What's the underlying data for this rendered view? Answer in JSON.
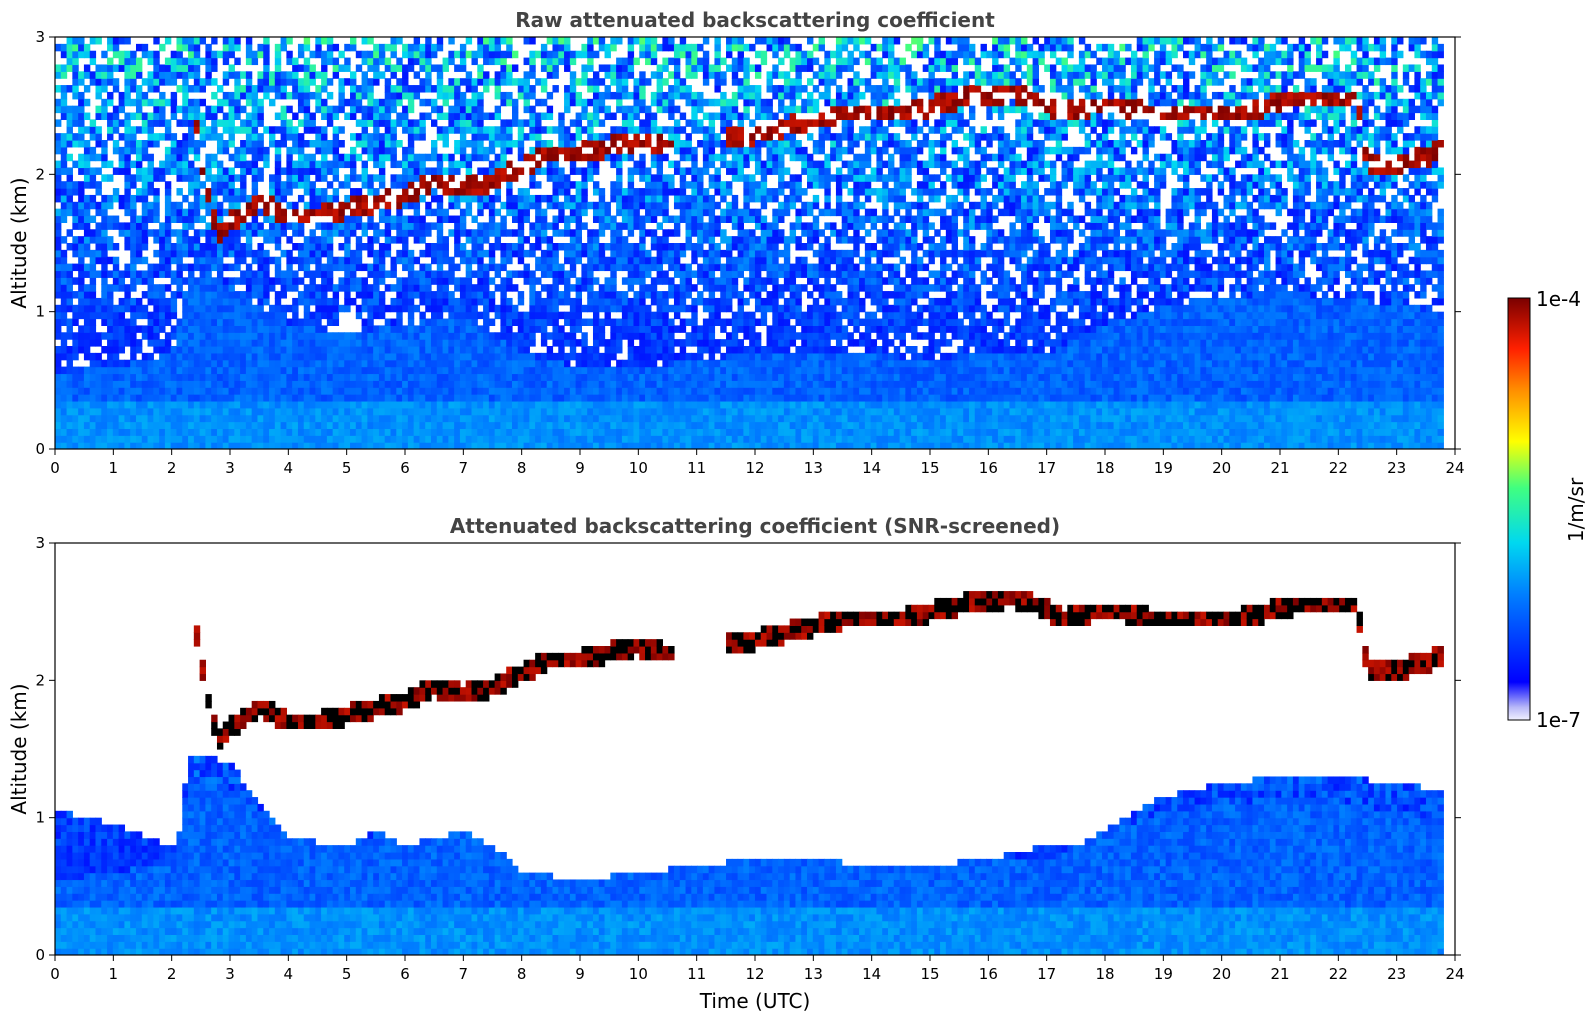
{
  "chart_data": [
    {
      "type": "heatmap",
      "title": "Raw attenuated backscattering coefficient",
      "ylabel": "Altitude (km)",
      "xlabel": "",
      "xlim": [
        0,
        24
      ],
      "ylim": [
        0,
        3
      ],
      "x_ticks": [
        0,
        1,
        2,
        3,
        4,
        5,
        6,
        7,
        8,
        9,
        10,
        11,
        12,
        13,
        14,
        15,
        16,
        17,
        18,
        19,
        20,
        21,
        22,
        23,
        24
      ],
      "y_ticks": [
        0,
        1,
        2,
        3
      ],
      "data_end_hour": 23.8,
      "screened": false,
      "layer_altitude_km": {
        "x": [
          2.4,
          2.6,
          2.8,
          3.0,
          3.5,
          4.0,
          4.5,
          5.0,
          5.5,
          6.0,
          6.5,
          7.0,
          7.5,
          8.0,
          8.5,
          9.0,
          9.5,
          10.0,
          10.5,
          11.5,
          12.0,
          12.5,
          13.0,
          13.5,
          14.0,
          14.5,
          15.0,
          15.5,
          16.4,
          16.8,
          17.3,
          17.8,
          18.3,
          18.8,
          19.3,
          19.8,
          20.3,
          20.8,
          21.3,
          21.8,
          22.3,
          22.5,
          22.8,
          23.2,
          23.6,
          23.8
        ],
        "y": [
          2.4,
          1.9,
          1.55,
          1.65,
          1.8,
          1.7,
          1.7,
          1.75,
          1.8,
          1.85,
          1.95,
          1.9,
          1.95,
          2.05,
          2.15,
          2.15,
          2.2,
          2.25,
          2.2,
          2.25,
          2.3,
          2.35,
          2.4,
          2.45,
          2.45,
          2.45,
          2.5,
          2.55,
          2.6,
          2.55,
          2.45,
          2.5,
          2.5,
          2.45,
          2.45,
          2.45,
          2.45,
          2.5,
          2.55,
          2.55,
          2.55,
          2.1,
          2.05,
          2.1,
          2.15,
          2.2
        ]
      },
      "boundary_layer_top_km": {
        "x": [
          0,
          1,
          2,
          2.3,
          2.5,
          3,
          4,
          5,
          6,
          7,
          8,
          9,
          10,
          11,
          12,
          13,
          14,
          15,
          16,
          17,
          18,
          19,
          20,
          21,
          22,
          23,
          23.8
        ],
        "y": [
          0.55,
          0.6,
          0.7,
          1.2,
          1.3,
          1.2,
          0.9,
          0.85,
          0.9,
          1.0,
          0.7,
          0.6,
          0.6,
          0.65,
          0.7,
          0.7,
          0.7,
          0.65,
          0.7,
          0.7,
          0.9,
          1.05,
          1.1,
          1.15,
          1.1,
          1.05,
          1.0
        ]
      }
    },
    {
      "type": "heatmap",
      "title": "Attenuated backscattering coefficient (SNR-screened)",
      "ylabel": "Altitude (km)",
      "xlabel": "Time (UTC)",
      "xlim": [
        0,
        24
      ],
      "ylim": [
        0,
        3
      ],
      "x_ticks": [
        0,
        1,
        2,
        3,
        4,
        5,
        6,
        7,
        8,
        9,
        10,
        11,
        12,
        13,
        14,
        15,
        16,
        17,
        18,
        19,
        20,
        21,
        22,
        23,
        24
      ],
      "y_ticks": [
        0,
        1,
        2,
        3
      ],
      "data_end_hour": 23.8,
      "screened": true,
      "screened_top_km": {
        "x": [
          0,
          1,
          1.9,
          2.1,
          2.3,
          2.5,
          3,
          3.5,
          4,
          5,
          5.5,
          6,
          6.5,
          7,
          7.5,
          8,
          9,
          10,
          11,
          12,
          13,
          14,
          15,
          16,
          17,
          17.5,
          18,
          18.5,
          19,
          20,
          21,
          22,
          23,
          23.8
        ],
        "y": [
          1.05,
          0.95,
          0.8,
          0.8,
          1.45,
          1.45,
          1.4,
          1.1,
          0.85,
          0.8,
          0.9,
          0.8,
          0.85,
          0.9,
          0.8,
          0.6,
          0.55,
          0.6,
          0.65,
          0.7,
          0.7,
          0.65,
          0.65,
          0.7,
          0.8,
          0.8,
          0.9,
          1.05,
          1.15,
          1.25,
          1.3,
          1.3,
          1.25,
          1.2
        ]
      }
    }
  ],
  "colorbar": {
    "min_label": "1e-7",
    "max_label": "1e-4",
    "label": "1/m/sr",
    "scale": "log",
    "colormap": "jet"
  }
}
